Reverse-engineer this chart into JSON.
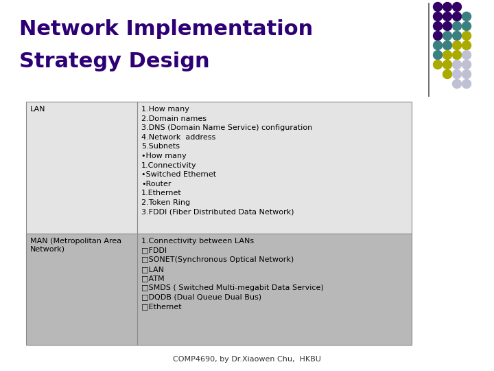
{
  "title_line1": "Network Implementation",
  "title_line2": "Strategy Design",
  "title_color": "#2e0075",
  "title_fontsize": 22,
  "background_color": "#ffffff",
  "table_border_color": "#888888",
  "row1_bg": "#e4e4e4",
  "row2_bg": "#b8b8b8",
  "lan_label": "LAN",
  "man_label": "MAN (Metropolitan Area\nNetwork)",
  "lan_content": "1.How many\n2.Domain names\n3.DNS (Domain Name Service) configuration\n4.Network  address\n5.Subnets\n•How many\n1.Connectivity\n•Switched Ethernet\n•Router\n1.Ethernet\n2.Token Ring\n3.FDDI (Fiber Distributed Data Network)",
  "man_content": "1.Connectivity between LANs\n□FDDI\n□SONET(Synchronous Optical Network)\n□LAN\n□ATM\n□SMDS ( Switched Multi-megabit Data Service)\n□DQDB (Dual Queue Dual Bus)\n□Ethernet",
  "footer": "COMP4690, by Dr.Xiaowen Chu,  HKBU",
  "footer_fontsize": 8,
  "content_fontsize": 8,
  "label_fontsize": 8,
  "purple": "#330066",
  "teal": "#3a8080",
  "yellow": "#aaaa00",
  "light": "#c0c0d4"
}
